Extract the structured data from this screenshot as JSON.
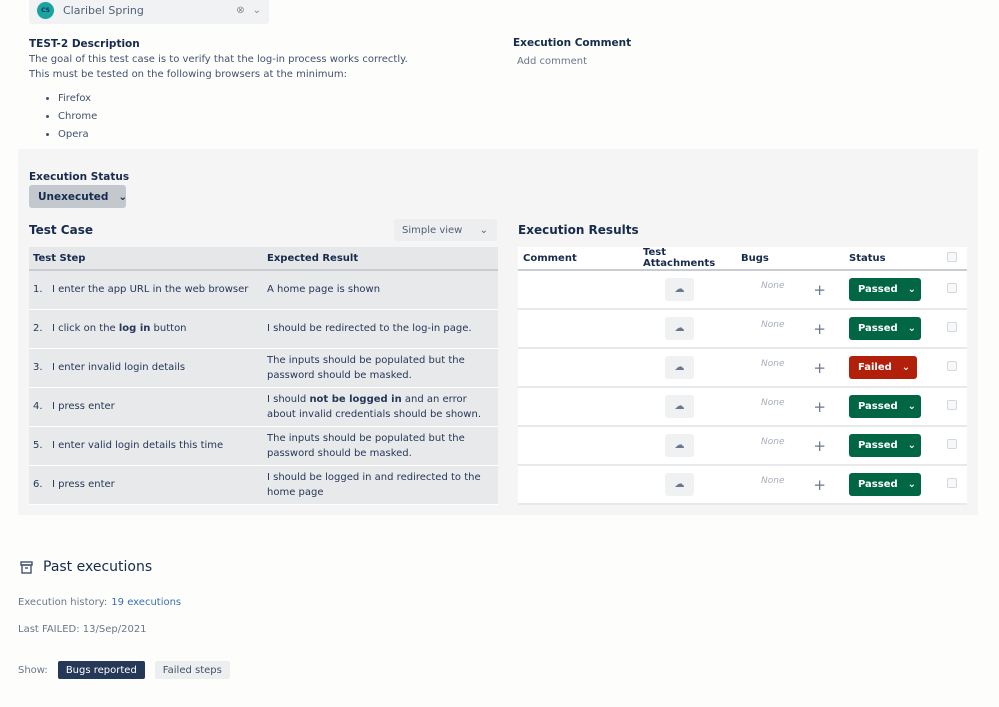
{
  "assignee": {
    "initials": "CS",
    "name": "Claribel Spring"
  },
  "description": {
    "title": "TEST-2 Description",
    "lines": [
      "The goal of this test case is to verify that the log-in process works correctly.",
      "This must be tested on the following browsers at the minimum:"
    ],
    "browsers": [
      "Firefox",
      "Chrome",
      "Opera"
    ]
  },
  "execution_comment": {
    "title": "Execution Comment",
    "placeholder": "Add comment"
  },
  "execution_status": {
    "label": "Execution Status",
    "value": "Unexecuted"
  },
  "test_case": {
    "title": "Test Case",
    "view": "Simple view",
    "headers": [
      "Test Step",
      "Expected Result"
    ],
    "rows": [
      {
        "n": "1.",
        "step": [
          {
            "t": "I enter the app URL in the web browser"
          }
        ],
        "expected": [
          {
            "t": "A home page is shown"
          }
        ]
      },
      {
        "n": "2.",
        "step": [
          {
            "t": "I click on the "
          },
          {
            "t": "log in",
            "b": true
          },
          {
            "t": " button"
          }
        ],
        "expected": [
          {
            "t": "I should be redirected to the log-in page."
          }
        ]
      },
      {
        "n": "3.",
        "step": [
          {
            "t": "I enter invalid login details"
          }
        ],
        "expected": [
          {
            "t": "The inputs should be populated but the password should be masked."
          }
        ]
      },
      {
        "n": "4.",
        "step": [
          {
            "t": "I press enter"
          }
        ],
        "expected": [
          {
            "t": "I should "
          },
          {
            "t": "not be logged in",
            "b": true
          },
          {
            "t": " and an error about invalid credentials should be shown."
          }
        ]
      },
      {
        "n": "5.",
        "step": [
          {
            "t": "I enter valid login details this time"
          }
        ],
        "expected": [
          {
            "t": "The inputs should be populated but the password should be masked."
          }
        ]
      },
      {
        "n": "6.",
        "step": [
          {
            "t": "I press enter"
          }
        ],
        "expected": [
          {
            "t": "I should be logged in and redirected to the home page"
          }
        ]
      }
    ]
  },
  "execution_results": {
    "title": "Execution Results",
    "headers": [
      "Comment",
      "Test Attachments",
      "Bugs",
      "Status"
    ],
    "rows": [
      {
        "bugs": "None",
        "status": "Passed"
      },
      {
        "bugs": "None",
        "status": "Passed"
      },
      {
        "bugs": "None",
        "status": "Failed"
      },
      {
        "bugs": "None",
        "status": "Passed"
      },
      {
        "bugs": "None",
        "status": "Passed"
      },
      {
        "bugs": "None",
        "status": "Passed"
      }
    ]
  },
  "status_colors": {
    "Passed": "#006644",
    "Failed": "#b21f0a"
  },
  "past_executions": {
    "title": "Past executions",
    "history_label": "Execution history:",
    "history_link": "19 executions",
    "last_failed_label": "Last FAILED:",
    "last_failed_date": "13/Sep/2021",
    "show_label": "Show:",
    "filters": [
      {
        "label": "Bugs reported",
        "active": true
      },
      {
        "label": "Failed steps",
        "active": false
      }
    ]
  }
}
